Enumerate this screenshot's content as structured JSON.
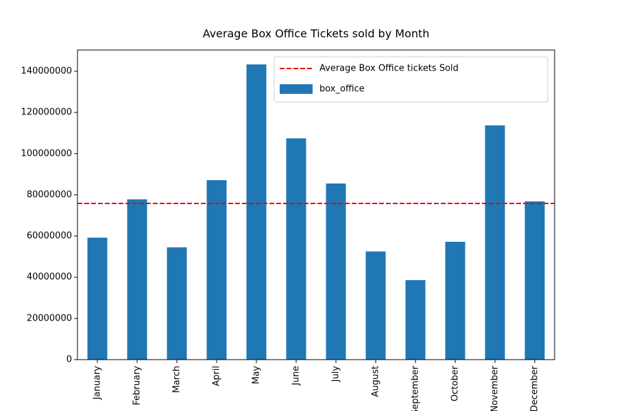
{
  "chart_data": {
    "type": "bar",
    "title": "Average Box Office Tickets sold by Month",
    "categories": [
      "January",
      "February",
      "March",
      "April",
      "May",
      "June",
      "July",
      "August",
      "September",
      "October",
      "November",
      "December"
    ],
    "series": [
      {
        "name": "box_office",
        "color": "#1f77b4",
        "values": [
          59200000,
          77800000,
          54500000,
          87100000,
          143300000,
          107400000,
          85500000,
          52500000,
          38600000,
          57200000,
          113700000,
          76800000
        ]
      }
    ],
    "reference_line": {
      "name": "Average Box Office tickets Sold",
      "value": 75800000,
      "color": "#e8000b"
    },
    "ylim": [
      0,
      150300000
    ],
    "yticks": [
      0,
      20000000,
      40000000,
      60000000,
      80000000,
      100000000,
      120000000,
      140000000
    ],
    "legend": "upper right",
    "grid": false
  }
}
